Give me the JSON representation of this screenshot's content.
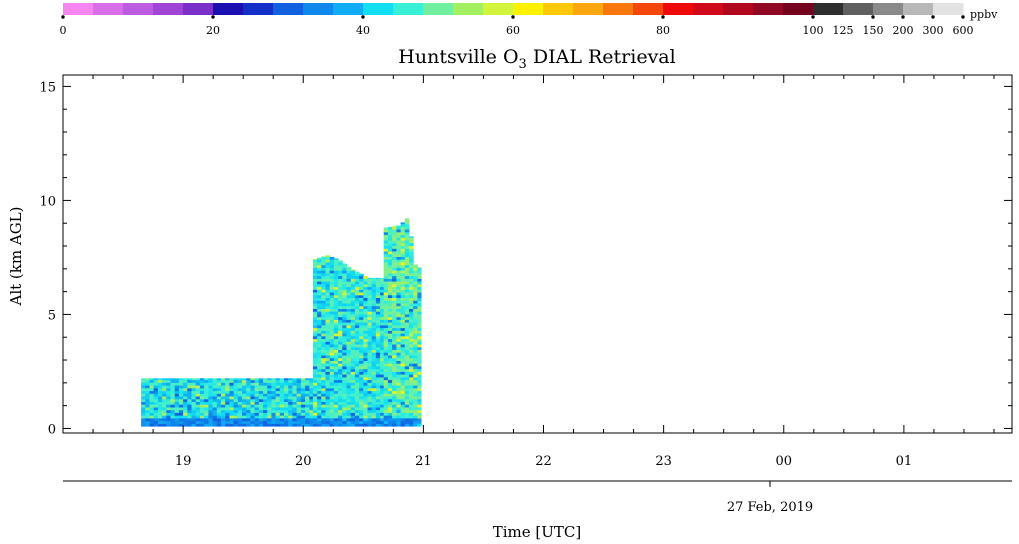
{
  "chart_data": {
    "type": "heatmap",
    "title": "Huntsville O3 DIAL Retrieval",
    "title_parts": {
      "prefix": "Huntsville O",
      "subscript": "3",
      "suffix": " DIAL Retrieval"
    },
    "xlabel": "Time [UTC]",
    "ylabel": "Alt (km AGL)",
    "date_label": "27 Feb, 2019",
    "x_ticks": [
      "19",
      "20",
      "21",
      "22",
      "23",
      "00",
      "01"
    ],
    "x_tick_hours": [
      19,
      20,
      21,
      22,
      23,
      24,
      25
    ],
    "xlim_hours": [
      18.0,
      25.9
    ],
    "y_ticks": [
      "0",
      "5",
      "10",
      "15"
    ],
    "y_tick_values": [
      0,
      5,
      10,
      15
    ],
    "ylim": [
      -0.2,
      15.5
    ],
    "grid": false,
    "colorbar": {
      "unit": "ppbv",
      "labels": [
        "0",
        "20",
        "40",
        "60",
        "80",
        "100",
        "125",
        "150",
        "200",
        "300",
        "600"
      ],
      "colors": [
        "#f785f0",
        "#d86fe8",
        "#bc5ce0",
        "#9e45d6",
        "#7a2fc9",
        "#1a0fb0",
        "#1230c8",
        "#1060e0",
        "#0e88ec",
        "#10acf4",
        "#12e0f2",
        "#38f0d6",
        "#70f09e",
        "#a2f060",
        "#d2f43a",
        "#fef202",
        "#fcc808",
        "#fca610",
        "#f8780e",
        "#f2460a",
        "#ee0a0a",
        "#d00a1a",
        "#b2081e",
        "#900824",
        "#74041e",
        "#2e2e2e",
        "#606060",
        "#8a8a8a",
        "#b8b8b8",
        "#e2e2e2"
      ]
    },
    "series": [
      {
        "time_start": 18.65,
        "time_end": 20.08,
        "alt_min": 0.1,
        "alt_max": 2.2,
        "o3_ppbv_typical": [
          38,
          48
        ],
        "o3_ppbv_range": [
          25,
          55
        ]
      },
      {
        "time_start": 20.08,
        "time_end": 20.67,
        "alt_min": 0.1,
        "alt_max_profile": [
          [
            20.08,
            7.4
          ],
          [
            20.2,
            7.6
          ],
          [
            20.3,
            7.4
          ],
          [
            20.4,
            7.0
          ],
          [
            20.55,
            6.6
          ],
          [
            20.67,
            6.6
          ]
        ],
        "o3_ppbv_typical": [
          40,
          48
        ],
        "o3_ppbv_range": [
          25,
          58
        ]
      },
      {
        "time_start": 20.67,
        "time_end": 20.98,
        "alt_min": 0.1,
        "alt_max_profile": [
          [
            20.67,
            8.8
          ],
          [
            20.8,
            8.9
          ],
          [
            20.88,
            9.3
          ],
          [
            20.9,
            8.3
          ],
          [
            20.93,
            7.2
          ],
          [
            20.98,
            7.0
          ]
        ],
        "o3_ppbv_typical": [
          42,
          52
        ],
        "o3_ppbv_range": [
          25,
          60
        ]
      }
    ]
  }
}
